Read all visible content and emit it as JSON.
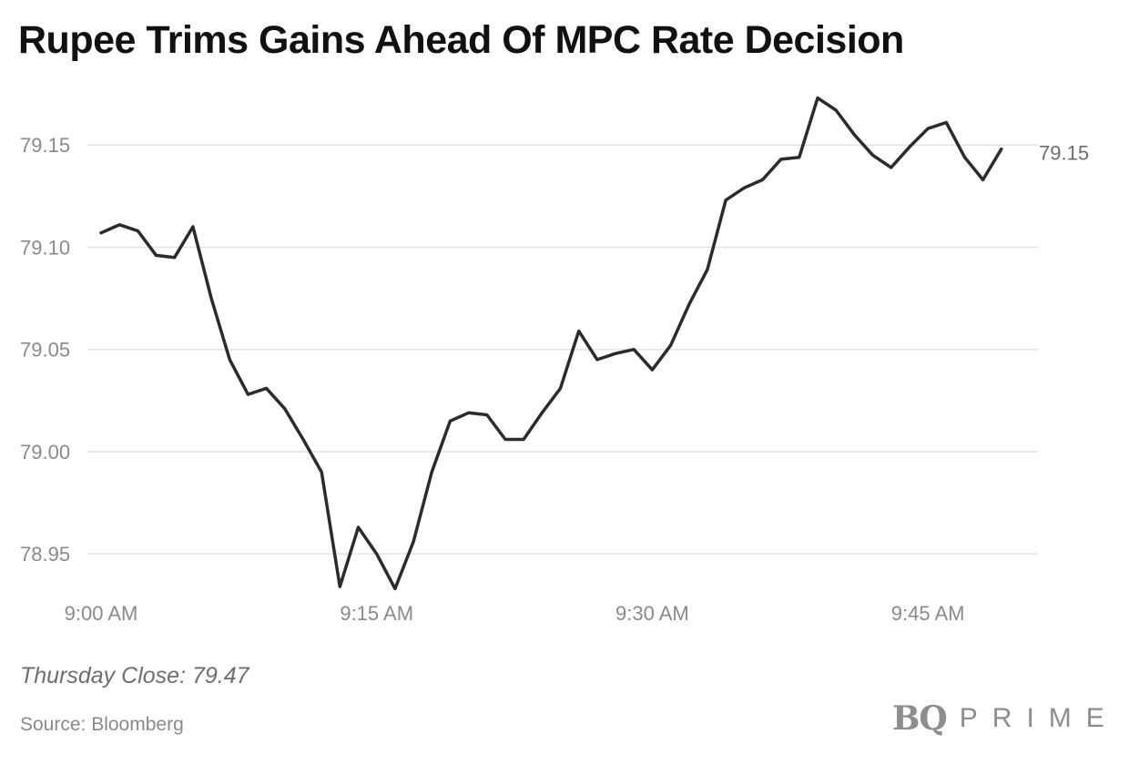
{
  "chart_data": {
    "type": "line",
    "title": "Rupee Trims Gains Ahead Of MPC Rate Decision",
    "xlabel": "",
    "ylabel": "",
    "x_tick_labels": [
      "9:00 AM",
      "9:15 AM",
      "9:30 AM",
      "9:45 AM"
    ],
    "x_tick_minutes": [
      0,
      15,
      30,
      45
    ],
    "y_ticks": [
      78.95,
      79.0,
      79.05,
      79.1,
      79.15
    ],
    "y_tick_labels": [
      "78.95",
      "79.00",
      "79.05",
      "79.10",
      "79.15"
    ],
    "xlim": [
      0,
      50
    ],
    "ylim": [
      78.93,
      79.17
    ],
    "grid": true,
    "legend": "none",
    "line_color": "#2b2b2b",
    "grid_color": "#e3e3e3",
    "end_label": "79.15",
    "series": [
      {
        "x_minutes": [
          0,
          1,
          2,
          3,
          4,
          5,
          6,
          7,
          8,
          9,
          10,
          11,
          12,
          13,
          14,
          15,
          16,
          17,
          18,
          19,
          20,
          21,
          22,
          23,
          24,
          25,
          26,
          27,
          28,
          29,
          30,
          31,
          32,
          33,
          34,
          35,
          36,
          37,
          38,
          39,
          40,
          41,
          42,
          43,
          44,
          45,
          46,
          47,
          48,
          49
        ],
        "values": [
          79.107,
          79.111,
          79.108,
          79.096,
          79.095,
          79.11,
          79.075,
          79.045,
          79.028,
          79.031,
          79.021,
          79.006,
          78.99,
          78.934,
          78.963,
          78.95,
          78.933,
          78.956,
          78.99,
          79.015,
          79.019,
          79.018,
          79.006,
          79.006,
          79.019,
          79.031,
          79.059,
          79.045,
          79.048,
          79.05,
          79.04,
          79.052,
          79.072,
          79.089,
          79.123,
          79.129,
          79.133,
          79.143,
          79.144,
          79.173,
          79.167,
          79.155,
          79.145,
          79.139,
          79.149,
          79.158,
          79.161,
          79.144,
          79.133,
          79.148
        ]
      }
    ]
  },
  "note": "Thursday Close: 79.47",
  "source": "Source: Bloomberg",
  "brand": {
    "mark": "BQ",
    "word": "PRIME",
    "color": "#8d8d8d"
  }
}
